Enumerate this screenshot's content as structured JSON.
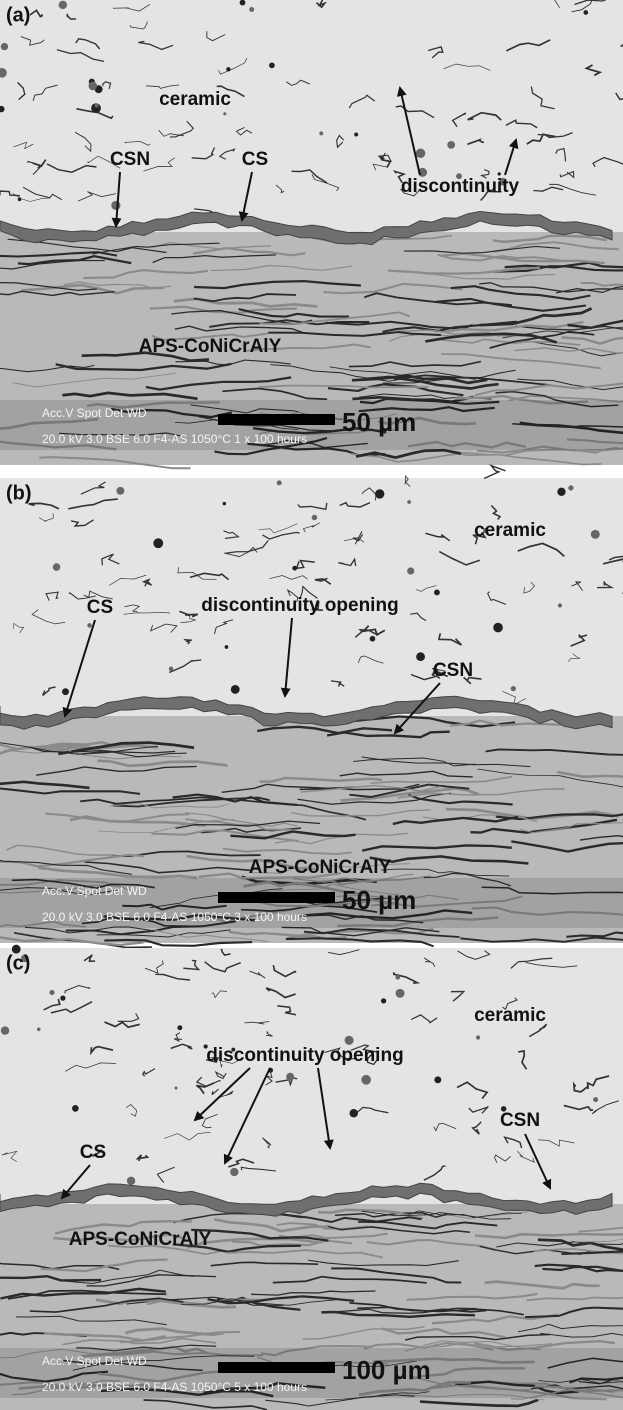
{
  "panels": [
    {
      "label": "(a)",
      "annotations": [
        "ceramic",
        "CSN",
        "CS",
        "discontinuity",
        "APS-CoNiCrAlY"
      ],
      "scale_bar": "50 µm",
      "info_line1": "Acc.V   Spot Det   WD",
      "info_line2": "20.0 kV 3.0   BSE 6.0    F4-AS 1050°C 1 x 100 hours"
    },
    {
      "label": "(b)",
      "annotations": [
        "ceramic",
        "CS",
        "discontinuity opening",
        "CSN",
        "APS-CoNiCrAlY"
      ],
      "scale_bar": "50 µm",
      "info_line1": "Acc.V   Spot Det   WD",
      "info_line2": "20.0 kV 3.0   BSE 6.0    F4-AS 1050°C 3 x 100 hours"
    },
    {
      "label": "(c)",
      "annotations": [
        "ceramic",
        "discontinuity opening",
        "CSN",
        "CS",
        "APS-CoNiCrAlY"
      ],
      "scale_bar": "100 µm",
      "info_line1": "Acc.V   Spot Det   WD",
      "info_line2": "20.0 kV 3.0   BSE 6.0    F4-AS 1050°C 5 x 100 hours"
    }
  ]
}
